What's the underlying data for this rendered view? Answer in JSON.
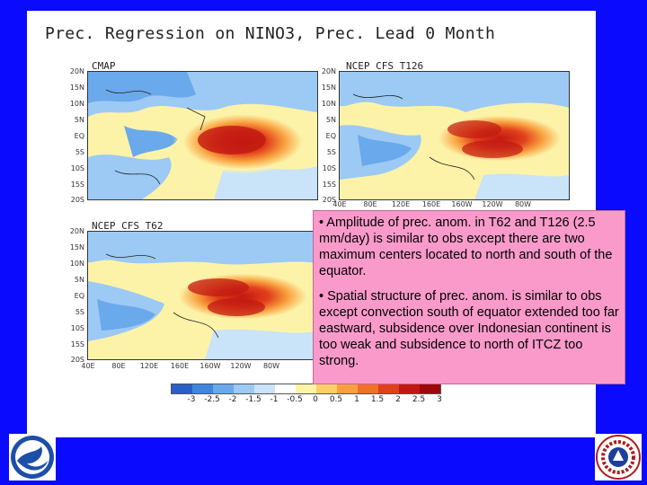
{
  "slide": {
    "title": "Prec. Regression on NINO3, Prec. Lead 0 Month",
    "panels": [
      {
        "label": "CMAP"
      },
      {
        "label": "NCEP CFS T126"
      },
      {
        "label": "NCEP CFS T62"
      }
    ],
    "lat_labels": [
      "20N",
      "15N",
      "10N",
      "5N",
      "EQ",
      "5S",
      "10S",
      "15S",
      "20S"
    ],
    "lon_labels": [
      "40E",
      "80E",
      "120E",
      "160E",
      "160W",
      "120W",
      "80W"
    ],
    "colorbar": {
      "colors": [
        "#2a5ec8",
        "#3f86dc",
        "#6aa9ec",
        "#9ccaf4",
        "#c9e3f8",
        "#ffffff",
        "#fdf3a8",
        "#fccf66",
        "#f9a03e",
        "#f07226",
        "#e0401c",
        "#c21812",
        "#9b0a0a"
      ],
      "ticks": [
        "-3",
        "-2.5",
        "-2",
        "-1.5",
        "-1",
        "-0.5",
        "0",
        "0.5",
        "1",
        "1.5",
        "2",
        "2.5",
        "3"
      ]
    },
    "notes": [
      "• Amplitude of prec. anom. in T62 and T126 (2.5 mm/day) is similar to obs except there are two maximum centers located to north and south of the equator.",
      "• Spatial structure of prec. anom. is similar to obs except convection south of equator extended too far eastward, subsidence over Indonesian continent is too weak and subsidence to north of ITCZ too strong."
    ]
  }
}
